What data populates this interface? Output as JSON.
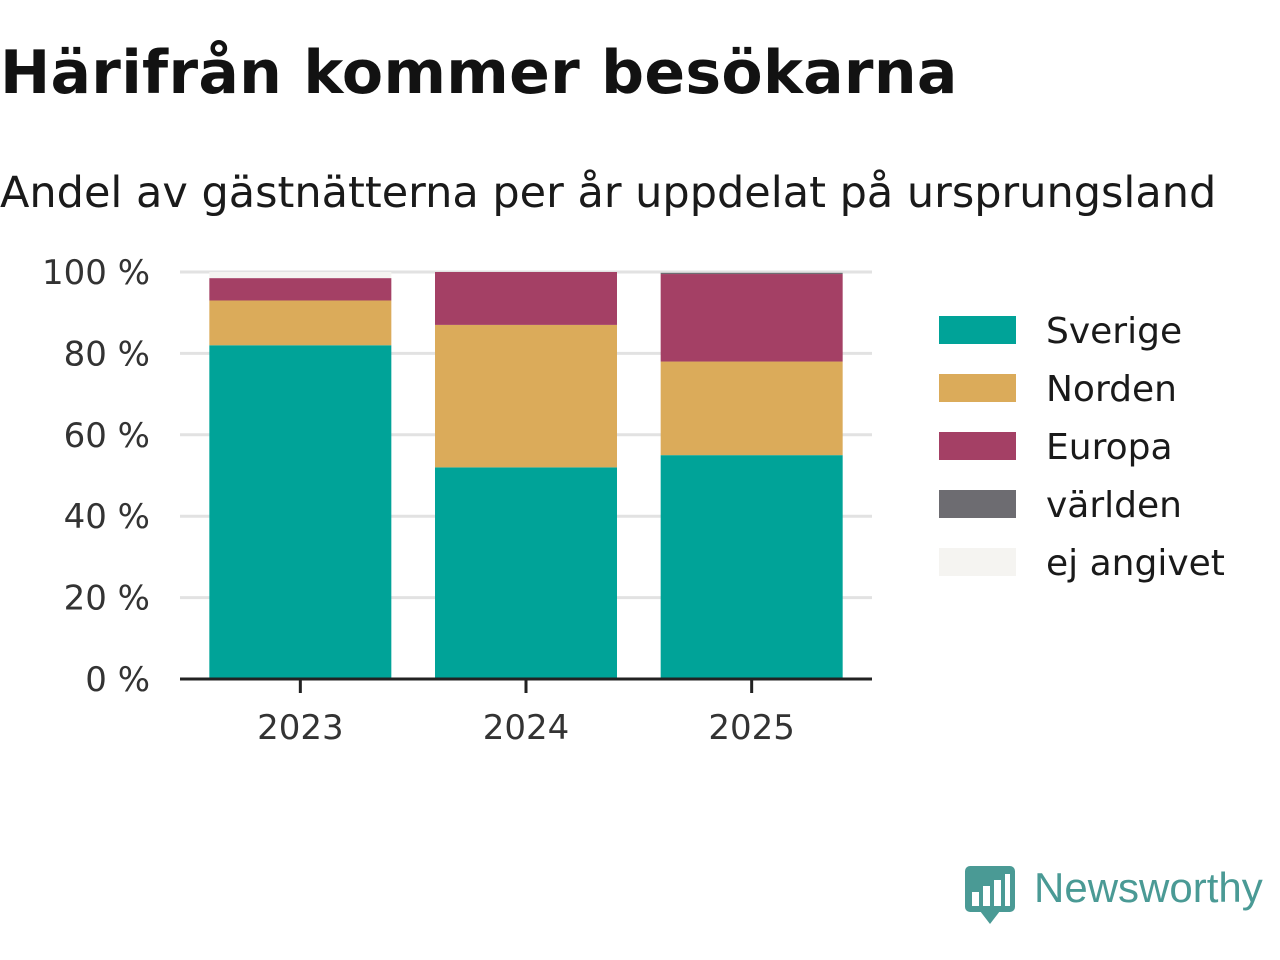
{
  "title": "Härifrån kommer besökarna",
  "subtitle": "Andel av gästnätterna per år uppdelat på ursprungsland",
  "brand": {
    "name": "Newsworthy",
    "icon": "newsworthy-logo-icon",
    "color": "#4a9a95"
  },
  "chart_data": {
    "type": "bar",
    "stacked": true,
    "categories": [
      "2023",
      "2024",
      "2025"
    ],
    "series": [
      {
        "name": "Sverige",
        "color": "#00a398",
        "values": [
          82,
          52,
          55
        ]
      },
      {
        "name": "Norden",
        "color": "#dbab5a",
        "values": [
          11,
          35,
          23
        ]
      },
      {
        "name": "Europa",
        "color": "#a44065",
        "values": [
          5.5,
          13,
          21.5
        ]
      },
      {
        "name": "världen",
        "color": "#6d6c71",
        "values": [
          0,
          0,
          0.3
        ]
      },
      {
        "name": "ej angivet",
        "color": "#f5f4f1",
        "values": [
          1.5,
          0,
          0
        ]
      }
    ],
    "ylim": [
      0,
      100
    ],
    "yticks": [
      0,
      20,
      40,
      60,
      80,
      100
    ],
    "ytick_labels": [
      "0 %",
      "20 %",
      "40 %",
      "60 %",
      "80 %",
      "100 %"
    ],
    "xlabel": "",
    "ylabel": "",
    "grid": true,
    "legend_position": "right"
  }
}
